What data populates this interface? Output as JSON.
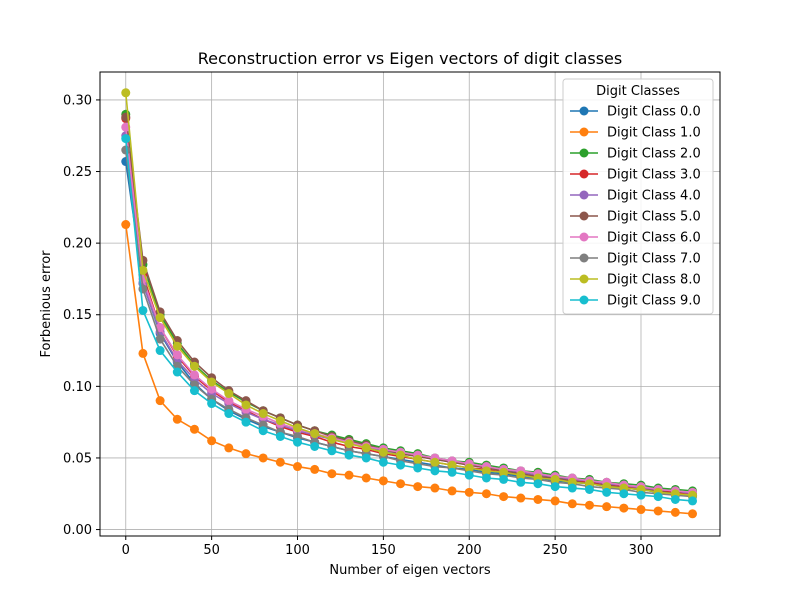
{
  "chart_data": {
    "type": "line",
    "title": "Reconstruction error vs Eigen vectors of digit classes",
    "xlabel": "Number of eigen vectors",
    "ylabel": "Forbenious error",
    "xlim": [
      -15,
      346
    ],
    "ylim": [
      -0.0045,
      0.3195
    ],
    "xticks": [
      0,
      50,
      100,
      150,
      200,
      250,
      300
    ],
    "xtick_labels": [
      "0",
      "50",
      "100",
      "150",
      "200",
      "250",
      "300"
    ],
    "yticks": [
      0.0,
      0.05,
      0.1,
      0.15,
      0.2,
      0.25,
      0.3
    ],
    "ytick_labels": [
      "0.00",
      "0.05",
      "0.10",
      "0.15",
      "0.20",
      "0.25",
      "0.30"
    ],
    "grid": true,
    "legend": {
      "title": "Digit Classes",
      "placement": "upper-right"
    },
    "x": [
      0,
      10,
      20,
      30,
      40,
      50,
      60,
      70,
      80,
      90,
      100,
      110,
      120,
      130,
      140,
      150,
      160,
      170,
      180,
      190,
      200,
      210,
      220,
      230,
      240,
      250,
      260,
      270,
      280,
      290,
      300,
      310,
      320,
      330
    ],
    "series": [
      {
        "name": "Digit Class 0.0",
        "color": "#1f77b4",
        "values": [
          0.257,
          0.172,
          0.137,
          0.117,
          0.102,
          0.091,
          0.083,
          0.077,
          0.072,
          0.068,
          0.064,
          0.061,
          0.058,
          0.055,
          0.053,
          0.051,
          0.049,
          0.047,
          0.045,
          0.043,
          0.042,
          0.04,
          0.039,
          0.037,
          0.036,
          0.034,
          0.033,
          0.032,
          0.03,
          0.029,
          0.028,
          0.026,
          0.025,
          0.024
        ]
      },
      {
        "name": "Digit Class 1.0",
        "color": "#ff7f0e",
        "values": [
          0.213,
          0.123,
          0.09,
          0.077,
          0.07,
          0.062,
          0.057,
          0.053,
          0.05,
          0.047,
          0.044,
          0.042,
          0.039,
          0.038,
          0.036,
          0.034,
          0.032,
          0.03,
          0.029,
          0.027,
          0.026,
          0.025,
          0.023,
          0.022,
          0.021,
          0.02,
          0.018,
          0.017,
          0.016,
          0.015,
          0.014,
          0.013,
          0.012,
          0.011
        ]
      },
      {
        "name": "Digit Class 2.0",
        "color": "#2ca02c",
        "values": [
          0.29,
          0.185,
          0.15,
          0.13,
          0.115,
          0.104,
          0.096,
          0.089,
          0.083,
          0.078,
          0.073,
          0.069,
          0.066,
          0.063,
          0.06,
          0.057,
          0.055,
          0.053,
          0.05,
          0.048,
          0.047,
          0.045,
          0.043,
          0.041,
          0.04,
          0.038,
          0.036,
          0.035,
          0.033,
          0.032,
          0.031,
          0.029,
          0.028,
          0.027
        ]
      },
      {
        "name": "Digit Class 3.0",
        "color": "#d62728",
        "values": [
          0.287,
          0.178,
          0.141,
          0.121,
          0.107,
          0.097,
          0.089,
          0.083,
          0.077,
          0.072,
          0.068,
          0.065,
          0.061,
          0.058,
          0.056,
          0.053,
          0.051,
          0.049,
          0.047,
          0.045,
          0.043,
          0.042,
          0.04,
          0.038,
          0.037,
          0.035,
          0.034,
          0.033,
          0.031,
          0.03,
          0.029,
          0.027,
          0.026,
          0.025
        ]
      },
      {
        "name": "Digit Class 4.0",
        "color": "#9467bd",
        "values": [
          0.275,
          0.172,
          0.138,
          0.118,
          0.105,
          0.095,
          0.088,
          0.082,
          0.077,
          0.073,
          0.069,
          0.066,
          0.063,
          0.06,
          0.058,
          0.055,
          0.053,
          0.051,
          0.049,
          0.047,
          0.045,
          0.043,
          0.042,
          0.04,
          0.038,
          0.037,
          0.035,
          0.034,
          0.032,
          0.031,
          0.029,
          0.028,
          0.027,
          0.025
        ]
      },
      {
        "name": "Digit Class 5.0",
        "color": "#8c564b",
        "values": [
          0.288,
          0.188,
          0.152,
          0.132,
          0.117,
          0.106,
          0.097,
          0.09,
          0.083,
          0.078,
          0.073,
          0.069,
          0.065,
          0.062,
          0.059,
          0.056,
          0.053,
          0.051,
          0.049,
          0.047,
          0.045,
          0.043,
          0.041,
          0.039,
          0.037,
          0.036,
          0.034,
          0.032,
          0.031,
          0.029,
          0.028,
          0.027,
          0.025,
          0.024
        ]
      },
      {
        "name": "Digit Class 6.0",
        "color": "#e377c2",
        "values": [
          0.281,
          0.175,
          0.141,
          0.122,
          0.108,
          0.098,
          0.09,
          0.084,
          0.079,
          0.074,
          0.07,
          0.067,
          0.064,
          0.061,
          0.058,
          0.056,
          0.054,
          0.052,
          0.05,
          0.048,
          0.046,
          0.044,
          0.042,
          0.041,
          0.039,
          0.037,
          0.036,
          0.034,
          0.033,
          0.031,
          0.03,
          0.028,
          0.027,
          0.026
        ]
      },
      {
        "name": "Digit Class 7.0",
        "color": "#7f7f7f",
        "values": [
          0.265,
          0.168,
          0.133,
          0.114,
          0.101,
          0.091,
          0.084,
          0.078,
          0.073,
          0.068,
          0.065,
          0.061,
          0.058,
          0.055,
          0.053,
          0.051,
          0.048,
          0.046,
          0.044,
          0.043,
          0.041,
          0.039,
          0.038,
          0.036,
          0.035,
          0.033,
          0.032,
          0.03,
          0.029,
          0.028,
          0.026,
          0.025,
          0.024,
          0.023
        ]
      },
      {
        "name": "Digit Class 8.0",
        "color": "#bcbd22",
        "values": [
          0.305,
          0.181,
          0.148,
          0.128,
          0.114,
          0.103,
          0.095,
          0.087,
          0.081,
          0.076,
          0.071,
          0.067,
          0.063,
          0.06,
          0.057,
          0.054,
          0.052,
          0.049,
          0.047,
          0.045,
          0.043,
          0.041,
          0.04,
          0.038,
          0.036,
          0.035,
          0.033,
          0.032,
          0.03,
          0.029,
          0.028,
          0.026,
          0.025,
          0.024
        ]
      },
      {
        "name": "Digit Class 9.0",
        "color": "#17becf",
        "values": [
          0.273,
          0.153,
          0.125,
          0.11,
          0.097,
          0.088,
          0.081,
          0.075,
          0.069,
          0.065,
          0.061,
          0.058,
          0.055,
          0.052,
          0.05,
          0.047,
          0.045,
          0.043,
          0.041,
          0.04,
          0.038,
          0.036,
          0.035,
          0.033,
          0.032,
          0.03,
          0.029,
          0.028,
          0.026,
          0.025,
          0.024,
          0.023,
          0.021,
          0.02
        ]
      }
    ]
  }
}
